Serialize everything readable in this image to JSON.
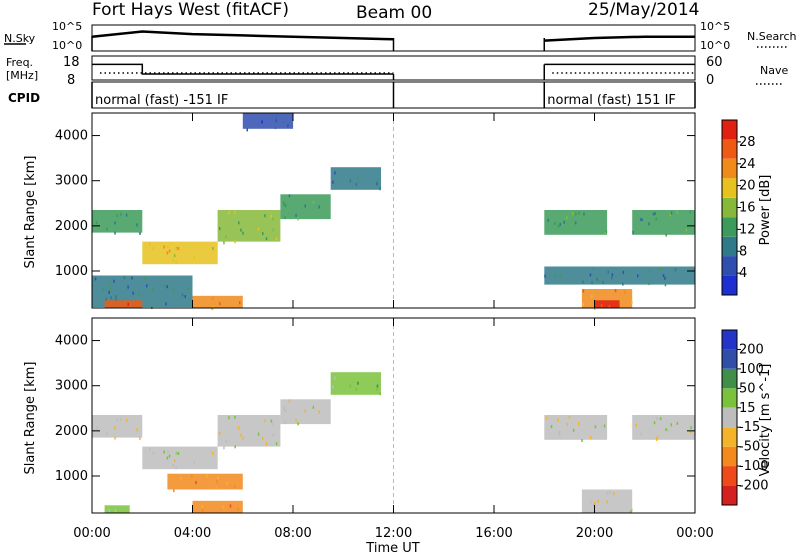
{
  "header": {
    "station": "Fort Hays West (fitACF)",
    "beam": "Beam 00",
    "date": "25/May/2014"
  },
  "colors": {
    "power": [
      "#1e2fd1",
      "#2f4fb0",
      "#2f7a8a",
      "#3c9a5a",
      "#86b83a",
      "#e6c21e",
      "#f08a1a",
      "#ee5a14",
      "#e02010"
    ],
    "velocity": [
      "#d42020",
      "#ee4a1a",
      "#f28a1e",
      "#f4b42a",
      "#bdbdbd",
      "#7ac23c",
      "#3f8f4a",
      "#3050a8",
      "#2433c8"
    ],
    "trace": "#000000"
  },
  "chart_data": [
    {
      "type": "line",
      "name": "noise",
      "labels": {
        "left": "N.Sky",
        "right": "N.Search",
        "left_ticks": [
          "10^5",
          "10^0"
        ],
        "right_ticks": [
          "10^5",
          "10^0"
        ]
      },
      "x_range_hours": [
        0,
        24
      ],
      "series": [
        {
          "name": "N.Sky",
          "x": [
            0,
            2,
            4,
            6,
            8,
            10,
            12,
            18,
            20,
            22,
            24
          ],
          "y": [
            0.55,
            0.75,
            0.65,
            0.6,
            0.55,
            0.5,
            0.45,
            0.4,
            0.5,
            0.55,
            0.55
          ]
        },
        {
          "name": "N.Search",
          "x": [],
          "y": []
        }
      ],
      "gap_hours": [
        12,
        18
      ]
    },
    {
      "type": "line",
      "name": "frequency",
      "labels": {
        "left": "Freq. [MHz]",
        "right": "Nave",
        "left_ticks": [
          "18",
          "8"
        ],
        "right_ticks": [
          "60",
          "0"
        ]
      },
      "ylim_left": [
        8,
        18
      ],
      "series": [
        {
          "name": "Freq.",
          "x": [
            0,
            2,
            2,
            12,
            18,
            24
          ],
          "y": [
            14.5,
            14.5,
            10.5,
            10.5,
            14.5,
            14.5
          ]
        },
        {
          "name": "Nave",
          "x": [
            0,
            12,
            18,
            24
          ],
          "y": [
            12,
            12,
            12,
            12
          ]
        }
      ]
    },
    {
      "type": "table",
      "name": "cpid",
      "label": "CPID",
      "segments": [
        {
          "text": "normal (fast) -151 IF",
          "start": 0,
          "end": 12
        },
        {
          "text": "normal (fast) 151 IF",
          "start": 18,
          "end": 24
        }
      ]
    },
    {
      "type": "heatmap",
      "name": "power",
      "ylabel": "Slant Range [km]",
      "ylim": [
        180,
        4500
      ],
      "yticks": [
        1000,
        2000,
        3000,
        4000
      ],
      "colorbar_label": "Power [dB]",
      "colorbar_ticks": [
        4,
        8,
        12,
        16,
        20,
        24,
        28
      ],
      "colorbar_range": [
        0,
        32
      ],
      "bands": [
        {
          "t": [
            0,
            2
          ],
          "r": [
            1850,
            2350
          ],
          "level": 3
        },
        {
          "t": [
            2,
            5
          ],
          "r": [
            1150,
            1650
          ],
          "level": 5
        },
        {
          "t": [
            5,
            7.5
          ],
          "r": [
            1650,
            2350
          ],
          "level": 4
        },
        {
          "t": [
            7.5,
            9.5
          ],
          "r": [
            2150,
            2700
          ],
          "level": 3
        },
        {
          "t": [
            9.5,
            11.5
          ],
          "r": [
            2800,
            3300
          ],
          "level": 2
        },
        {
          "t": [
            6,
            8
          ],
          "r": [
            4150,
            4500
          ],
          "level": 1
        },
        {
          "t": [
            0,
            4
          ],
          "r": [
            200,
            900
          ],
          "level": 2
        },
        {
          "t": [
            0.5,
            2
          ],
          "r": [
            180,
            350
          ],
          "level": 7
        },
        {
          "t": [
            4,
            6
          ],
          "r": [
            180,
            450
          ],
          "level": 6
        },
        {
          "t": [
            18,
            20.5
          ],
          "r": [
            1800,
            2350
          ],
          "level": 3
        },
        {
          "t": [
            21.5,
            24
          ],
          "r": [
            1800,
            2350
          ],
          "level": 3
        },
        {
          "t": [
            18,
            24
          ],
          "r": [
            700,
            1100
          ],
          "level": 2
        },
        {
          "t": [
            19.5,
            21.5
          ],
          "r": [
            180,
            600
          ],
          "level": 6
        },
        {
          "t": [
            20,
            21
          ],
          "r": [
            180,
            350
          ],
          "level": 8
        }
      ]
    },
    {
      "type": "heatmap",
      "name": "velocity",
      "ylabel": "Slant Range [km]",
      "xlabel": "Time UT",
      "ylim": [
        180,
        4500
      ],
      "yticks": [
        1000,
        2000,
        3000,
        4000
      ],
      "x_tick_labels": [
        "00:00",
        "04:00",
        "08:00",
        "12:00",
        "16:00",
        "20:00",
        "00:00"
      ],
      "x_ticks_hours": [
        0,
        4,
        8,
        12,
        16,
        20,
        24
      ],
      "colorbar_label": "Velocity [m s^-1]",
      "colorbar_ticks": [
        -200,
        -100,
        -50,
        -15,
        15,
        50,
        100,
        200
      ],
      "bands": [
        {
          "t": [
            0,
            2
          ],
          "r": [
            1850,
            2350
          ],
          "level": 4
        },
        {
          "t": [
            2,
            5
          ],
          "r": [
            1150,
            1650
          ],
          "level": 4
        },
        {
          "t": [
            5,
            7.5
          ],
          "r": [
            1650,
            2350
          ],
          "level": 4
        },
        {
          "t": [
            7.5,
            9.5
          ],
          "r": [
            2150,
            2700
          ],
          "level": 4
        },
        {
          "t": [
            9.5,
            11.5
          ],
          "r": [
            2800,
            3300
          ],
          "level": 5
        },
        {
          "t": [
            3,
            6
          ],
          "r": [
            700,
            1050
          ],
          "level": 2
        },
        {
          "t": [
            4,
            6
          ],
          "r": [
            180,
            450
          ],
          "level": 2
        },
        {
          "t": [
            0.5,
            1.5
          ],
          "r": [
            180,
            350
          ],
          "level": 5
        },
        {
          "t": [
            18,
            20.5
          ],
          "r": [
            1800,
            2350
          ],
          "level": 4
        },
        {
          "t": [
            21.5,
            24
          ],
          "r": [
            1800,
            2350
          ],
          "level": 4
        },
        {
          "t": [
            19.5,
            21.5
          ],
          "r": [
            180,
            700
          ],
          "level": 4
        }
      ]
    }
  ]
}
